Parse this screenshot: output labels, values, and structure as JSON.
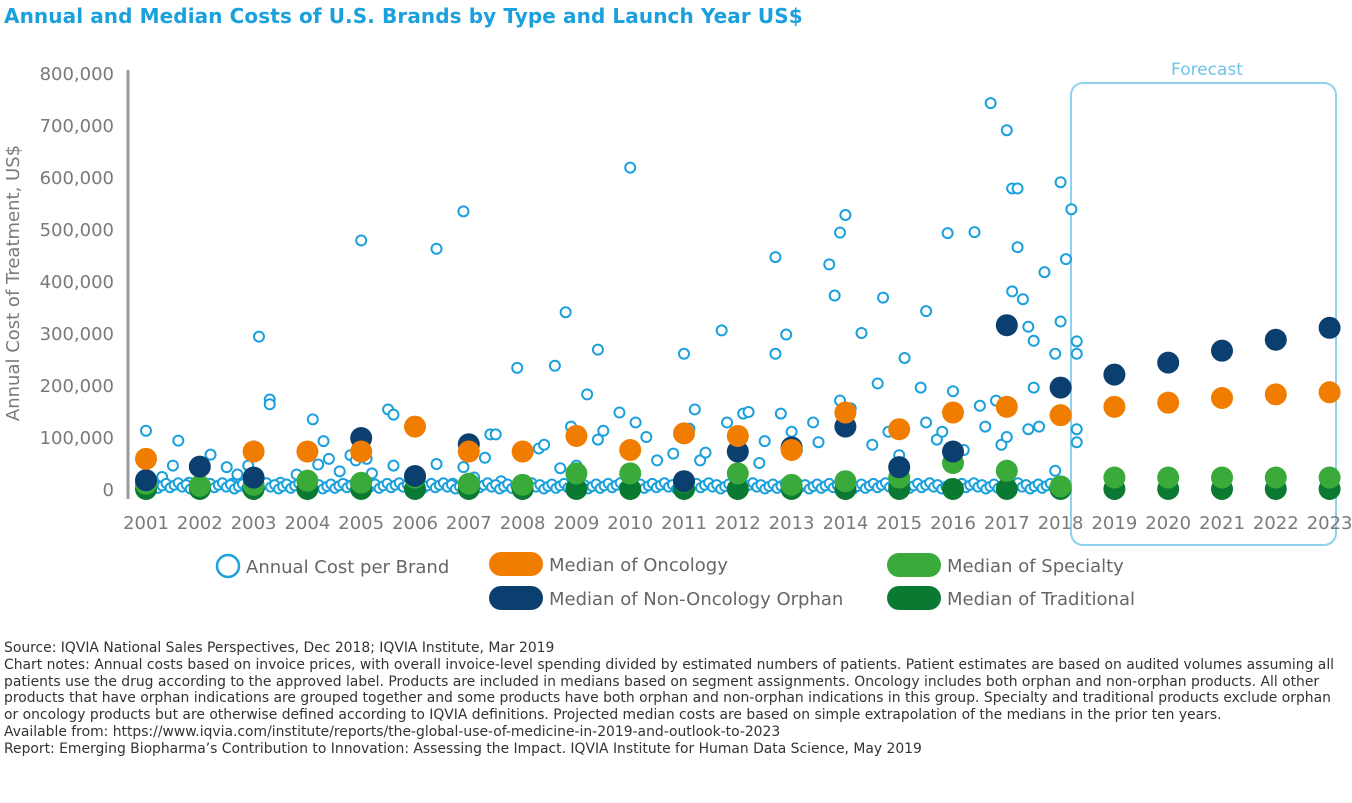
{
  "chart_data": {
    "type": "scatter",
    "title": "Annual and Median Costs of U.S. Brands by Type and Launch Year US$",
    "ylabel": "Annual Cost of Treatment, US$",
    "xlabel": "",
    "ylim": [
      0,
      800000
    ],
    "y_ticks": [
      0,
      100000,
      200000,
      300000,
      400000,
      500000,
      600000,
      700000,
      800000
    ],
    "y_tick_labels": [
      "0",
      "100,000",
      "200,000",
      "300,000",
      "400,000",
      "500,000",
      "600,000",
      "700,000",
      "800,000"
    ],
    "categories": [
      "2001",
      "2002",
      "2003",
      "2004",
      "2005",
      "2006",
      "2007",
      "2008",
      "2009",
      "2010",
      "2011",
      "2012",
      "2013",
      "2014",
      "2015",
      "2016",
      "2017",
      "2018",
      "2019",
      "2020",
      "2021",
      "2022",
      "2023"
    ],
    "forecast_label": "Forecast",
    "forecast_start": "2019",
    "legend_position": "bottom",
    "series": [
      {
        "name": "Median of Oncology",
        "color": "#f07d00",
        "values": [
          58000,
          null,
          72000,
          72000,
          72000,
          120000,
          72000,
          72000,
          102000,
          75000,
          107000,
          102000,
          75000,
          147000,
          115000,
          147000,
          158000,
          142000,
          158000,
          166000,
          175000,
          182000,
          186000
        ]
      },
      {
        "name": "Median of Non-Oncology Orphan",
        "color": "#0b3f70",
        "values": [
          17000,
          43000,
          22000,
          null,
          98000,
          25000,
          86000,
          null,
          null,
          null,
          15000,
          72000,
          80000,
          120000,
          42000,
          72000,
          315000,
          195000,
          220000,
          243000,
          266000,
          287000,
          310000
        ]
      },
      {
        "name": "Median of Specialty",
        "color": "#3aaa3a",
        "values": [
          10000,
          6000,
          8000,
          16000,
          12000,
          22000,
          10000,
          8000,
          30000,
          30000,
          14000,
          30000,
          8000,
          15000,
          22000,
          50000,
          35000,
          5000,
          22000,
          22000,
          22000,
          22000,
          22000
        ]
      },
      {
        "name": "Median of Traditional",
        "color": "#0a7a32",
        "values": [
          0,
          0,
          0,
          0,
          0,
          0,
          0,
          0,
          0,
          0,
          0,
          0,
          0,
          0,
          0,
          0,
          0,
          0,
          0,
          0,
          0,
          0,
          0
        ]
      },
      {
        "name": "Annual Cost per Brand",
        "color": "#1aa0dc",
        "points": [
          [
            2001.0,
            112000
          ],
          [
            2001.3,
            23000
          ],
          [
            2001.5,
            45000
          ],
          [
            2001.6,
            93000
          ],
          [
            2001.2,
            6000
          ],
          [
            2001.8,
            12000
          ],
          [
            2002.2,
            66000
          ],
          [
            2002.5,
            42000
          ],
          [
            2002.7,
            28000
          ],
          [
            2002.9,
            45000
          ],
          [
            2002.6,
            10000
          ],
          [
            2003.0,
            82000
          ],
          [
            2003.1,
            293000
          ],
          [
            2003.3,
            172000
          ],
          [
            2003.3,
            163000
          ],
          [
            2003.5,
            12000
          ],
          [
            2003.8,
            28000
          ],
          [
            2004.1,
            134000
          ],
          [
            2004.3,
            92000
          ],
          [
            2004.2,
            47000
          ],
          [
            2004.4,
            58000
          ],
          [
            2004.6,
            34000
          ],
          [
            2004.7,
            8000
          ],
          [
            2004.8,
            65000
          ],
          [
            2004.9,
            55000
          ],
          [
            2005.0,
            478000
          ],
          [
            2005.1,
            58000
          ],
          [
            2005.2,
            30000
          ],
          [
            2005.5,
            153000
          ],
          [
            2005.6,
            143000
          ],
          [
            2005.6,
            45000
          ],
          [
            2005.9,
            12000
          ],
          [
            2006.0,
            118000
          ],
          [
            2006.4,
            462000
          ],
          [
            2006.4,
            48000
          ],
          [
            2006.7,
            10000
          ],
          [
            2006.9,
            534000
          ],
          [
            2006.9,
            42000
          ],
          [
            2007.1,
            22000
          ],
          [
            2007.4,
            105000
          ],
          [
            2007.5,
            105000
          ],
          [
            2007.3,
            60000
          ],
          [
            2007.6,
            15000
          ],
          [
            2007.9,
            233000
          ],
          [
            2008.3,
            78000
          ],
          [
            2008.4,
            85000
          ],
          [
            2008.6,
            237000
          ],
          [
            2008.8,
            340000
          ],
          [
            2008.7,
            40000
          ],
          [
            2008.9,
            120000
          ],
          [
            2009.0,
            45000
          ],
          [
            2009.2,
            182000
          ],
          [
            2009.4,
            268000
          ],
          [
            2009.5,
            112000
          ],
          [
            2009.4,
            95000
          ],
          [
            2009.8,
            147000
          ],
          [
            2010.0,
            618000
          ],
          [
            2010.1,
            128000
          ],
          [
            2010.3,
            100000
          ],
          [
            2010.5,
            55000
          ],
          [
            2010.8,
            68000
          ],
          [
            2011.0,
            260000
          ],
          [
            2011.2,
            153000
          ],
          [
            2011.3,
            55000
          ],
          [
            2011.1,
            116000
          ],
          [
            2011.4,
            70000
          ],
          [
            2011.7,
            305000
          ],
          [
            2011.8,
            128000
          ],
          [
            2012.1,
            145000
          ],
          [
            2012.2,
            148000
          ],
          [
            2012.4,
            50000
          ],
          [
            2012.5,
            92000
          ],
          [
            2012.7,
            446000
          ],
          [
            2012.8,
            145000
          ],
          [
            2012.7,
            260000
          ],
          [
            2012.9,
            297000
          ],
          [
            2013.0,
            110000
          ],
          [
            2013.1,
            75000
          ],
          [
            2013.4,
            128000
          ],
          [
            2013.5,
            90000
          ],
          [
            2013.7,
            432000
          ],
          [
            2013.8,
            372000
          ],
          [
            2013.9,
            170000
          ],
          [
            2013.9,
            493000
          ],
          [
            2014.0,
            527000
          ],
          [
            2014.1,
            155000
          ],
          [
            2014.3,
            300000
          ],
          [
            2014.6,
            203000
          ],
          [
            2014.7,
            368000
          ],
          [
            2014.5,
            85000
          ],
          [
            2014.8,
            110000
          ],
          [
            2015.0,
            65000
          ],
          [
            2015.1,
            252000
          ],
          [
            2015.4,
            195000
          ],
          [
            2015.5,
            342000
          ],
          [
            2015.5,
            128000
          ],
          [
            2015.7,
            95000
          ],
          [
            2015.8,
            110000
          ],
          [
            2015.9,
            492000
          ],
          [
            2016.0,
            188000
          ],
          [
            2016.2,
            75000
          ],
          [
            2016.4,
            494000
          ],
          [
            2016.5,
            160000
          ],
          [
            2016.6,
            120000
          ],
          [
            2016.7,
            742000
          ],
          [
            2016.8,
            170000
          ],
          [
            2016.9,
            85000
          ],
          [
            2017.0,
            690000
          ],
          [
            2017.0,
            100000
          ],
          [
            2017.1,
            578000
          ],
          [
            2017.2,
            578000
          ],
          [
            2017.1,
            380000
          ],
          [
            2017.2,
            465000
          ],
          [
            2017.3,
            365000
          ],
          [
            2017.4,
            312000
          ],
          [
            2017.5,
            285000
          ],
          [
            2017.5,
            195000
          ],
          [
            2017.4,
            115000
          ],
          [
            2017.7,
            417000
          ],
          [
            2017.6,
            120000
          ],
          [
            2017.9,
            260000
          ],
          [
            2018.0,
            322000
          ],
          [
            2018.0,
            590000
          ],
          [
            2018.1,
            442000
          ],
          [
            2018.2,
            538000
          ],
          [
            2018.3,
            284000
          ],
          [
            2018.3,
            260000
          ],
          [
            2018.3,
            115000
          ],
          [
            2018.3,
            90000
          ],
          [
            2018.0,
            150000
          ],
          [
            2017.9,
            35000
          ]
        ]
      }
    ]
  },
  "legend": [
    {
      "label": "Annual Cost per Brand",
      "style": "ring",
      "color": "#1aa0dc"
    },
    {
      "label": "Median of Oncology",
      "style": "pill",
      "color": "#f07d00"
    },
    {
      "label": "Median of Specialty",
      "style": "pill",
      "color": "#3aaa3a"
    },
    {
      "label": "Median of Non-Oncology Orphan",
      "style": "pill",
      "color": "#0b3f70"
    },
    {
      "label": "Median of Traditional",
      "style": "pill",
      "color": "#0a7a32"
    }
  ],
  "notes": {
    "source": "Source: IQVIA National Sales Perspectives, Dec 2018; IQVIA Institute, Mar 2019",
    "chart_notes": "Chart notes: Annual costs based on invoice prices, with overall invoice-level spending divided by estimated numbers of patients. Patient estimates are based on audited volumes assuming all patients use the drug according to the approved label. Products are included in medians based on segment assignments. Oncology includes both orphan and non-orphan products. All other products that have orphan indications are grouped together and some products have both orphan and non-orphan indications in this group. Specialty and traditional products exclude orphan or oncology products but are otherwise defined according to IQVIA definitions. Projected median costs are based on simple extrapolation of the medians in the prior ten years.",
    "available": "Available from: https://www.iqvia.com/institute/reports/the-global-use-of-medicine-in-2019-and-outlook-to-2023",
    "report": "Report: Emerging Biopharma’s Contribution to Innovation: Assessing the Impact. IQVIA Institute for Human Data Science, May 2019"
  }
}
